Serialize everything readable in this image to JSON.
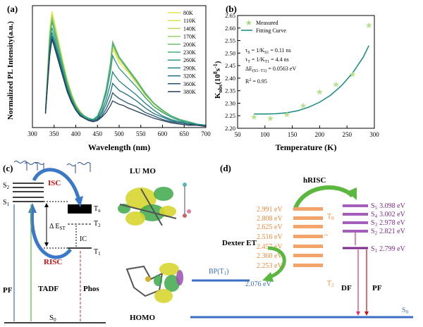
{
  "colors": {
    "blue": "#3b6fc4",
    "red": "#cc1111",
    "purple": "#7b2a8c",
    "orange": "#ef8a3c",
    "teal": "#16897f",
    "green": "#5ab83e",
    "darkred": "#8b1a1a",
    "pink": "#e0306e"
  },
  "chart_data": [
    {
      "panel": "(a)",
      "type": "line",
      "xlabel": "Wavelength (nm)",
      "ylabel": "Normalized PL Intensity(a.u.)",
      "xlim": [
        300,
        700
      ],
      "ylim": [
        0,
        1.05
      ],
      "xticks": [
        300,
        350,
        400,
        450,
        500,
        550,
        600,
        650,
        700
      ],
      "legend_position": "top-right",
      "x": [
        330,
        340,
        345,
        350,
        360,
        370,
        380,
        390,
        400,
        410,
        420,
        430,
        440,
        450,
        460,
        470,
        480,
        485,
        490,
        500,
        510,
        520,
        540,
        560,
        580,
        600,
        620,
        640,
        660,
        680,
        700
      ],
      "series": [
        {
          "name": "80K",
          "color": "#e6e64a",
          "values": [
            0.15,
            0.85,
            1.0,
            0.92,
            0.75,
            0.58,
            0.42,
            0.3,
            0.2,
            0.14,
            0.1,
            0.08,
            0.07,
            0.1,
            0.18,
            0.3,
            0.5,
            0.68,
            0.64,
            0.56,
            0.52,
            0.48,
            0.38,
            0.28,
            0.2,
            0.14,
            0.1,
            0.07,
            0.05,
            0.03,
            0.02
          ]
        },
        {
          "name": "110K",
          "color": "#d9e24f",
          "values": [
            0.15,
            0.83,
            0.98,
            0.9,
            0.74,
            0.57,
            0.41,
            0.29,
            0.2,
            0.14,
            0.1,
            0.08,
            0.07,
            0.1,
            0.18,
            0.31,
            0.52,
            0.7,
            0.66,
            0.58,
            0.54,
            0.49,
            0.39,
            0.29,
            0.2,
            0.14,
            0.1,
            0.07,
            0.05,
            0.03,
            0.02
          ]
        },
        {
          "name": "140K",
          "color": "#bcd95a",
          "values": [
            0.15,
            0.82,
            0.97,
            0.89,
            0.73,
            0.56,
            0.41,
            0.29,
            0.2,
            0.14,
            0.1,
            0.08,
            0.07,
            0.1,
            0.19,
            0.32,
            0.54,
            0.72,
            0.68,
            0.6,
            0.55,
            0.5,
            0.4,
            0.29,
            0.21,
            0.14,
            0.1,
            0.07,
            0.05,
            0.03,
            0.02
          ]
        },
        {
          "name": "170K",
          "color": "#97cc64",
          "values": [
            0.14,
            0.8,
            0.95,
            0.87,
            0.71,
            0.55,
            0.4,
            0.28,
            0.19,
            0.13,
            0.1,
            0.08,
            0.07,
            0.1,
            0.19,
            0.33,
            0.55,
            0.73,
            0.69,
            0.61,
            0.56,
            0.51,
            0.41,
            0.3,
            0.21,
            0.15,
            0.1,
            0.07,
            0.05,
            0.03,
            0.02
          ]
        },
        {
          "name": "200K",
          "color": "#6dbf74",
          "values": [
            0.14,
            0.78,
            0.93,
            0.85,
            0.7,
            0.54,
            0.39,
            0.27,
            0.19,
            0.13,
            0.1,
            0.08,
            0.07,
            0.1,
            0.19,
            0.33,
            0.56,
            0.74,
            0.7,
            0.61,
            0.56,
            0.51,
            0.41,
            0.3,
            0.21,
            0.15,
            0.1,
            0.07,
            0.05,
            0.03,
            0.02
          ]
        },
        {
          "name": "230K",
          "color": "#45ad7c",
          "values": [
            0.14,
            0.76,
            0.91,
            0.84,
            0.69,
            0.53,
            0.38,
            0.27,
            0.18,
            0.13,
            0.1,
            0.08,
            0.07,
            0.1,
            0.18,
            0.32,
            0.54,
            0.72,
            0.68,
            0.6,
            0.55,
            0.5,
            0.4,
            0.29,
            0.21,
            0.15,
            0.1,
            0.07,
            0.05,
            0.03,
            0.02
          ]
        },
        {
          "name": "260K",
          "color": "#2c9a80",
          "values": [
            0.13,
            0.72,
            0.86,
            0.8,
            0.65,
            0.5,
            0.36,
            0.25,
            0.17,
            0.12,
            0.09,
            0.07,
            0.07,
            0.09,
            0.17,
            0.29,
            0.48,
            0.62,
            0.58,
            0.51,
            0.47,
            0.43,
            0.35,
            0.26,
            0.18,
            0.13,
            0.09,
            0.06,
            0.04,
            0.03,
            0.02
          ]
        },
        {
          "name": "290K",
          "color": "#1f8481",
          "values": [
            0.13,
            0.68,
            0.82,
            0.76,
            0.62,
            0.48,
            0.34,
            0.24,
            0.16,
            0.11,
            0.08,
            0.07,
            0.06,
            0.08,
            0.14,
            0.24,
            0.38,
            0.48,
            0.45,
            0.4,
            0.37,
            0.34,
            0.28,
            0.21,
            0.15,
            0.1,
            0.07,
            0.05,
            0.04,
            0.02,
            0.02
          ]
        },
        {
          "name": "320K",
          "color": "#1c6d7b",
          "values": [
            0.12,
            0.66,
            0.79,
            0.73,
            0.6,
            0.46,
            0.33,
            0.23,
            0.15,
            0.11,
            0.08,
            0.06,
            0.06,
            0.07,
            0.12,
            0.2,
            0.3,
            0.38,
            0.36,
            0.32,
            0.3,
            0.28,
            0.23,
            0.17,
            0.12,
            0.09,
            0.06,
            0.04,
            0.03,
            0.02,
            0.01
          ]
        },
        {
          "name": "360K",
          "color": "#22556d",
          "values": [
            0.12,
            0.64,
            0.77,
            0.71,
            0.58,
            0.45,
            0.32,
            0.22,
            0.15,
            0.1,
            0.08,
            0.06,
            0.06,
            0.07,
            0.1,
            0.16,
            0.24,
            0.3,
            0.28,
            0.25,
            0.23,
            0.21,
            0.18,
            0.13,
            0.1,
            0.07,
            0.05,
            0.04,
            0.03,
            0.02,
            0.01
          ]
        },
        {
          "name": "380K",
          "color": "#2a3d5c",
          "values": [
            0.12,
            0.62,
            0.76,
            0.7,
            0.57,
            0.44,
            0.31,
            0.22,
            0.15,
            0.1,
            0.08,
            0.06,
            0.05,
            0.06,
            0.09,
            0.13,
            0.19,
            0.23,
            0.22,
            0.2,
            0.19,
            0.17,
            0.14,
            0.11,
            0.08,
            0.06,
            0.04,
            0.03,
            0.02,
            0.02,
            0.01
          ]
        }
      ]
    },
    {
      "panel": "(b)",
      "type": "scatter",
      "xlabel": "Temperature (K)",
      "ylabel": "K",
      "ylabel_sub": "obs",
      "ylabel_rest": "(10",
      "ylabel_sup": "8",
      "ylabel_tail": "s",
      "ylabel_sup2": "-1",
      "ylabel_end": ")",
      "xlim": [
        50,
        300
      ],
      "ylim": [
        2.2,
        2.65
      ],
      "xticks": [
        50,
        100,
        150,
        200,
        250,
        300
      ],
      "yticks": [
        2.2,
        2.25,
        2.3,
        2.35,
        2.4,
        2.45,
        2.5,
        2.55,
        2.6,
        2.65
      ],
      "series": [
        {
          "name": "Measured",
          "color": "#b5e08c",
          "x": [
            80,
            110,
            140,
            170,
            200,
            230,
            260,
            290
          ],
          "values": [
            2.245,
            2.24,
            2.255,
            2.29,
            2.345,
            2.375,
            2.415,
            2.61
          ]
        },
        {
          "name": "Fitting Curve",
          "color": "#16897f",
          "x": [
            80,
            100,
            120,
            140,
            160,
            180,
            200,
            220,
            240,
            260,
            280,
            290
          ],
          "values": [
            2.257,
            2.257,
            2.258,
            2.262,
            2.27,
            2.284,
            2.304,
            2.332,
            2.37,
            2.42,
            2.485,
            2.53
          ]
        }
      ],
      "legend_position": "top-left"
    }
  ],
  "panel_a": {
    "label": "(a)",
    "yticks_hidden": true
  },
  "panel_b": {
    "label": "(b)",
    "eq1": "τS = 1/KS1 = 0.11 ns",
    "eq1_a": "τ",
    "eq1_b": "S",
    "eq1_c": " = 1/K",
    "eq1_d": "S1",
    "eq1_e": " = 0.11 ns",
    "eq2_a": "τ",
    "eq2_b": "T",
    "eq2_c": " = 1/K",
    "eq2_d": "T1",
    "eq2_e": " = 4.4 ns",
    "eq3_a": "ΔE",
    "eq3_b": "(S1−T1)",
    "eq3_c": " = 0.0563 eV",
    "eq4_a": "R",
    "eq4_b": "2",
    "eq4_c": " = 0.95"
  },
  "panel_c": {
    "label": "(c)",
    "isc": "ISC",
    "risc": "RISC",
    "ic": "IC",
    "pf": "PF",
    "tadf": "TADF",
    "phos": "Phos",
    "s2": "S",
    "s2_sub": "2",
    "s1": "S",
    "s1_sub": "1",
    "s0": "S",
    "s0_sub": "0",
    "tn": "T",
    "tn_sub": "n",
    "t2": "T",
    "t2_sub": "2",
    "t1": "T",
    "t1_sub": "1",
    "dest": "Δ E",
    "dest_sub": "ST",
    "lumo": "LU MO",
    "homo": "HOMO"
  },
  "panel_d": {
    "label": "(d)",
    "hrisc": "hRISC",
    "dexter": "Dexter ET",
    "bp": "BP(T",
    "bp_sub": "1",
    "bp_end": ")",
    "bp_energy": "2.076 eV",
    "triplets": [
      "2.991 eV",
      "2.808 eV",
      "2.625 eV",
      "2.516 eV",
      "2.457 eV",
      "2.360 eV",
      "2.253 eV"
    ],
    "t8": "T",
    "t8_sub": "8",
    "t2": "T",
    "t2_sub": "2",
    "tilde": "~",
    "singlets": [
      {
        "s": "S",
        "sub": "5",
        "val": "3.098 eV"
      },
      {
        "s": "S",
        "sub": "4",
        "val": "3.002 eV"
      },
      {
        "s": "S",
        "sub": "3",
        "val": "2.978 eV"
      },
      {
        "s": "S",
        "sub": "2",
        "val": "2.821 eV"
      }
    ],
    "s1": "S",
    "s1_sub": "1",
    "s1_val": "2.799 eV",
    "df": "DF",
    "pf": "PF",
    "s0": "S",
    "s0_sub": "0"
  }
}
